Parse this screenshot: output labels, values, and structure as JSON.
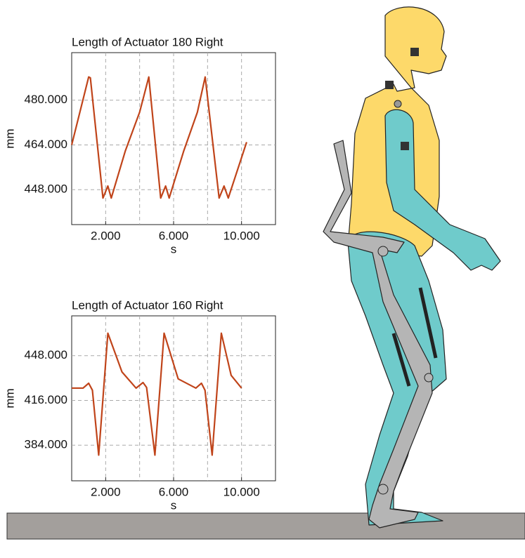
{
  "chart_data": [
    {
      "type": "line",
      "title": "Length of Actuator 180 Right",
      "x_label": "s",
      "y_label": "mm",
      "x": [
        0,
        1.0,
        1.1,
        1.84,
        2.13,
        2.33,
        3.16,
        4.0,
        4.54,
        5.24,
        5.53,
        5.74,
        6.6,
        7.4,
        7.86,
        8.68,
        8.97,
        9.22,
        10.3
      ],
      "series": [
        {
          "color": "#c0441a",
          "values": [
            464,
            488.3,
            488,
            445,
            449.3,
            445,
            461.9,
            475.7,
            488.3,
            445,
            449.3,
            445,
            461.9,
            475.7,
            488.3,
            445,
            449.3,
            445,
            465
          ]
        }
      ],
      "xlim": [
        0,
        12
      ],
      "ylim": [
        435.5,
        497
      ],
      "xticks": [
        {
          "value": 2,
          "label": "2.000"
        },
        {
          "value": 6,
          "label": "6.000"
        },
        {
          "value": 10,
          "label": "10.000"
        }
      ],
      "xgrid": [
        2,
        4,
        6,
        8,
        10
      ],
      "yticks": [
        {
          "value": 448,
          "label": "448.000"
        },
        {
          "value": 464,
          "label": "464.000"
        },
        {
          "value": 480,
          "label": "480.000"
        }
      ],
      "grid": true
    },
    {
      "type": "line",
      "title": "Length of Actuator 160 Right",
      "x_label": "s",
      "y_label": "mm",
      "x": [
        0,
        0.67,
        1.0,
        1.22,
        1.59,
        2.13,
        2.96,
        3.79,
        4.2,
        4.41,
        4.9,
        5.44,
        6.27,
        7.31,
        7.64,
        7.85,
        8.27,
        8.81,
        9.39,
        10.0
      ],
      "series": [
        {
          "color": "#c0441a",
          "values": [
            424.8,
            424.8,
            428.3,
            423.3,
            376.9,
            464.1,
            436.4,
            424.8,
            428.8,
            425.3,
            376.9,
            464.1,
            431.4,
            424.8,
            428.3,
            423.3,
            376.9,
            464.1,
            433.9,
            424.8
          ]
        }
      ],
      "xlim": [
        0,
        12
      ],
      "ylim": [
        358.5,
        476.5
      ],
      "xticks": [
        {
          "value": 2,
          "label": "2.000"
        },
        {
          "value": 6,
          "label": "6.000"
        },
        {
          "value": 10,
          "label": "10.000"
        }
      ],
      "xgrid": [
        2,
        4,
        6,
        8,
        10
      ],
      "yticks": [
        {
          "value": 384,
          "label": "384.000"
        },
        {
          "value": 416,
          "label": "416.000"
        },
        {
          "value": 448,
          "label": "448.000"
        }
      ],
      "grid": true
    }
  ]
}
